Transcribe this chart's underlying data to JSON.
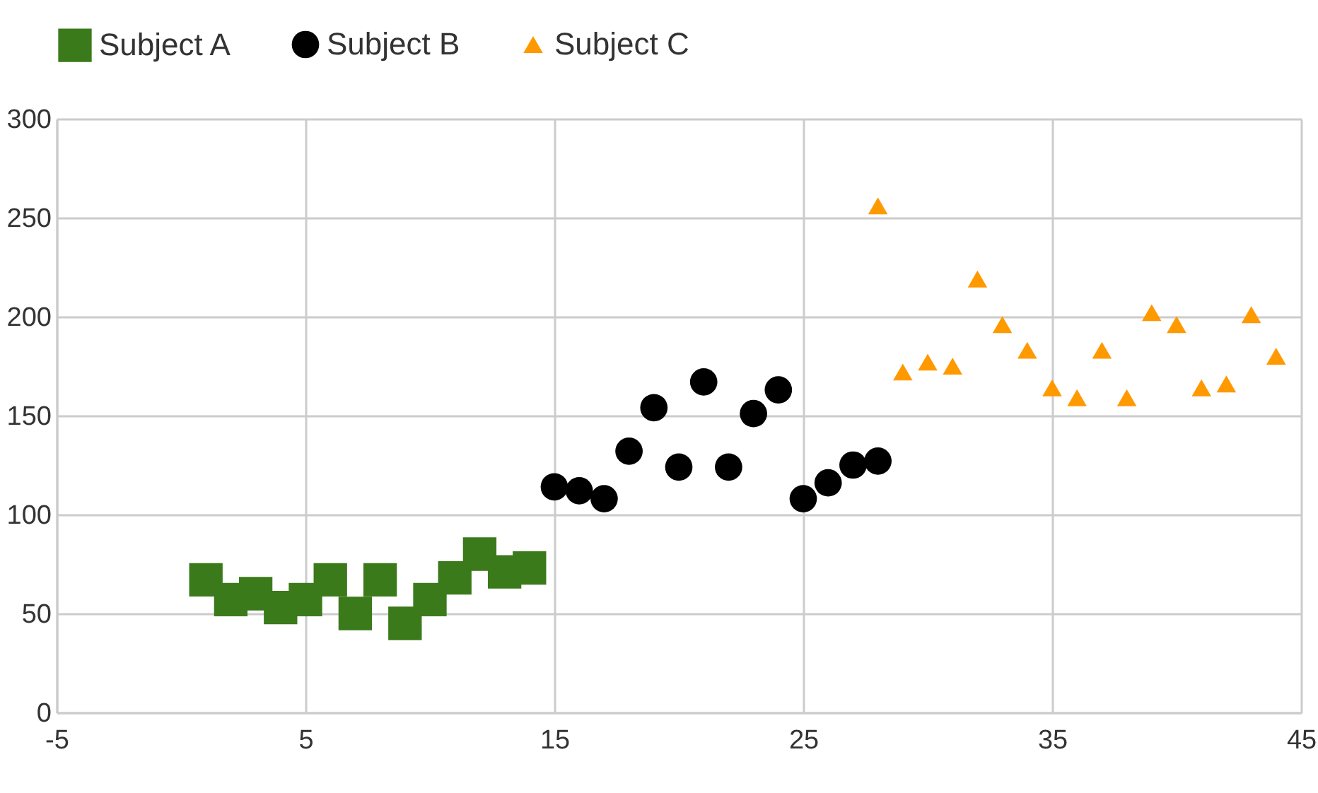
{
  "chart_data": {
    "type": "scatter",
    "series": [
      {
        "name": "Subject A",
        "color": "#3a7a1a",
        "marker": "square",
        "x": [
          1,
          2,
          3,
          4,
          5,
          6,
          7,
          8,
          9,
          10,
          11,
          12,
          13,
          14
        ],
        "values": [
          67,
          57,
          60,
          53,
          57,
          67,
          50,
          67,
          45,
          57,
          68,
          80,
          71,
          73
        ]
      },
      {
        "name": "Subject B",
        "color": "#000000",
        "marker": "circle",
        "x": [
          15,
          16,
          17,
          18,
          19,
          20,
          21,
          22,
          23,
          24,
          25,
          26,
          27,
          28
        ],
        "values": [
          114,
          112,
          108,
          132,
          154,
          124,
          167,
          124,
          151,
          163,
          108,
          116,
          125,
          127
        ]
      },
      {
        "name": "Subject C",
        "color": "#ff9900",
        "marker": "triangle",
        "x": [
          28,
          29,
          30,
          31,
          32,
          33,
          34,
          35,
          36,
          37,
          38,
          39,
          40,
          41,
          42,
          43,
          44
        ],
        "values": [
          256,
          172,
          177,
          175,
          219,
          196,
          183,
          164,
          159,
          183,
          159,
          202,
          196,
          164,
          166,
          201,
          180
        ]
      }
    ],
    "xlim": [
      -5,
      45
    ],
    "xticks": [
      -5,
      5,
      15,
      25,
      35,
      45
    ],
    "ylim": [
      0,
      300
    ],
    "yticks": [
      0,
      50,
      100,
      150,
      200,
      250,
      300
    ],
    "grid": true,
    "legend": "top"
  }
}
